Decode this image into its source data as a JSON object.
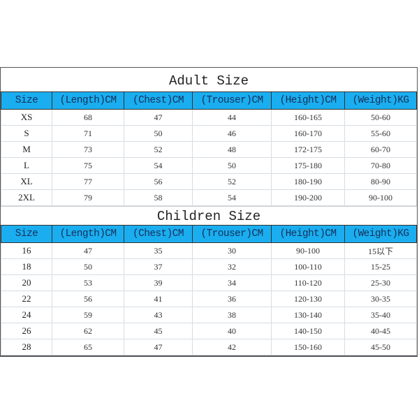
{
  "header_color": "#1aaef0",
  "columns": [
    "Size",
    "(Length)CM",
    "(Chest)CM",
    "(Trouser)CM",
    "(Height)CM",
    "(Weight)KG"
  ],
  "adult": {
    "title": "Adult Size",
    "rows": [
      [
        "XS",
        "68",
        "47",
        "44",
        "160-165",
        "50-60"
      ],
      [
        "S",
        "71",
        "50",
        "46",
        "160-170",
        "55-60"
      ],
      [
        "M",
        "73",
        "52",
        "48",
        "172-175",
        "60-70"
      ],
      [
        "L",
        "75",
        "54",
        "50",
        "175-180",
        "70-80"
      ],
      [
        "XL",
        "77",
        "56",
        "52",
        "180-190",
        "80-90"
      ],
      [
        "2XL",
        "79",
        "58",
        "54",
        "190-200",
        "90-100"
      ]
    ]
  },
  "children": {
    "title": "Children Size",
    "rows": [
      [
        "16",
        "47",
        "35",
        "30",
        "90-100",
        "15以下"
      ],
      [
        "18",
        "50",
        "37",
        "32",
        "100-110",
        "15-25"
      ],
      [
        "20",
        "53",
        "39",
        "34",
        "110-120",
        "25-30"
      ],
      [
        "22",
        "56",
        "41",
        "36",
        "120-130",
        "30-35"
      ],
      [
        "24",
        "59",
        "43",
        "38",
        "130-140",
        "35-40"
      ],
      [
        "26",
        "62",
        "45",
        "40",
        "140-150",
        "40-45"
      ],
      [
        "28",
        "65",
        "47",
        "42",
        "150-160",
        "45-50"
      ]
    ]
  }
}
